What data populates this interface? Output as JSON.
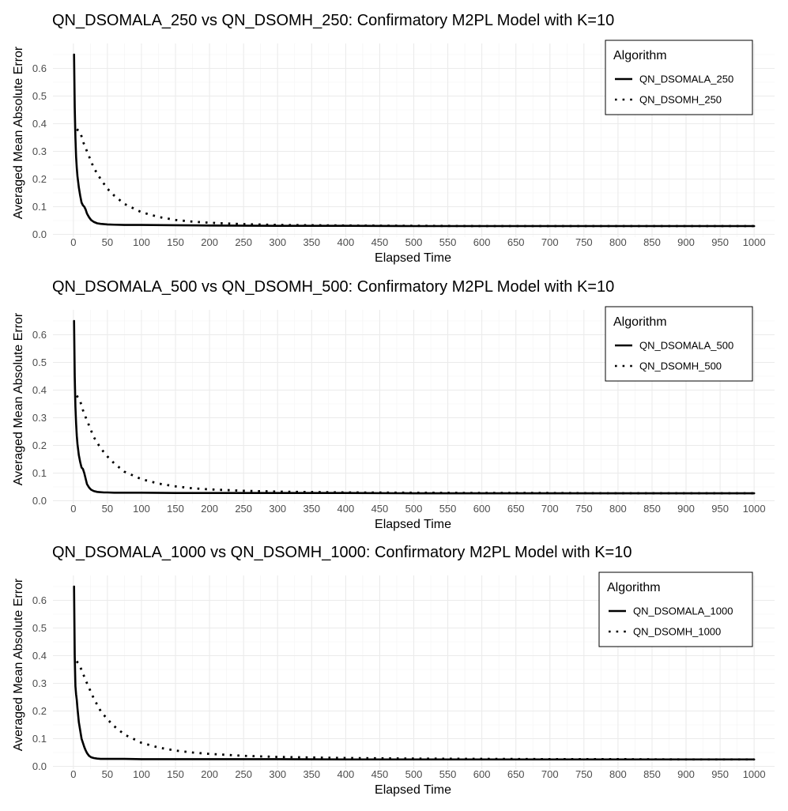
{
  "figure": {
    "description": "Three stacked panels comparing QN_DSOMALA and QN_DSOMH convergence"
  },
  "chart_data": [
    {
      "type": "line",
      "title": "QN_DSOMALA_250 vs QN_DSOMH_250: Confirmatory M2PL Model with K=10",
      "xlabel": "Elapsed Time",
      "ylabel": "Averaged Mean Absolute Error",
      "xlim": [
        -30,
        1030
      ],
      "ylim": [
        -0.01,
        0.69
      ],
      "xticks": [
        0,
        50,
        100,
        150,
        200,
        250,
        300,
        350,
        400,
        450,
        500,
        550,
        600,
        650,
        700,
        750,
        800,
        850,
        900,
        950,
        1000
      ],
      "yticks": [
        0.0,
        0.1,
        0.2,
        0.3,
        0.4,
        0.5,
        0.6
      ],
      "ytick_labels": [
        "0.0",
        "0.1",
        "0.2",
        "0.3",
        "0.4",
        "0.5",
        "0.6"
      ],
      "grid": true,
      "legend": {
        "title": "Algorithm",
        "position": "top-right"
      },
      "series": [
        {
          "name": "QN_DSOMALA_250",
          "style": "solid",
          "x": [
            1,
            2,
            3,
            4,
            5,
            6,
            8,
            10,
            12,
            14,
            16,
            18,
            20,
            23,
            26,
            30,
            35,
            40,
            45,
            50,
            60,
            75,
            100,
            150,
            200,
            300,
            400,
            500,
            600,
            700,
            800,
            900,
            1000
          ],
          "y": [
            0.65,
            0.46,
            0.35,
            0.28,
            0.24,
            0.21,
            0.17,
            0.14,
            0.115,
            0.105,
            0.1,
            0.09,
            0.075,
            0.062,
            0.052,
            0.045,
            0.04,
            0.038,
            0.037,
            0.036,
            0.035,
            0.034,
            0.034,
            0.033,
            0.032,
            0.031,
            0.031,
            0.03,
            0.03,
            0.03,
            0.03,
            0.03,
            0.03
          ]
        },
        {
          "name": "QN_DSOMH_250",
          "style": "dotted",
          "x": [
            5,
            10,
            15,
            20,
            30,
            40,
            50,
            60,
            75,
            100,
            125,
            150,
            175,
            200,
            250,
            300,
            400,
            500,
            600,
            700,
            800,
            900,
            1000
          ],
          "y": [
            0.38,
            0.37,
            0.33,
            0.3,
            0.24,
            0.2,
            0.165,
            0.14,
            0.11,
            0.08,
            0.063,
            0.052,
            0.046,
            0.042,
            0.037,
            0.034,
            0.032,
            0.031,
            0.03,
            0.03,
            0.03,
            0.03,
            0.03
          ]
        }
      ]
    },
    {
      "type": "line",
      "title": "QN_DSOMALA_500 vs QN_DSOMH_500: Confirmatory M2PL Model with K=10",
      "xlabel": "Elapsed Time",
      "ylabel": "Averaged Mean Absolute Error",
      "xlim": [
        -30,
        1030
      ],
      "ylim": [
        -0.01,
        0.69
      ],
      "xticks": [
        0,
        50,
        100,
        150,
        200,
        250,
        300,
        350,
        400,
        450,
        500,
        550,
        600,
        650,
        700,
        750,
        800,
        850,
        900,
        950,
        1000
      ],
      "yticks": [
        0.0,
        0.1,
        0.2,
        0.3,
        0.4,
        0.5,
        0.6
      ],
      "ytick_labels": [
        "0.0",
        "0.1",
        "0.2",
        "0.3",
        "0.4",
        "0.5",
        "0.6"
      ],
      "grid": true,
      "legend": {
        "title": "Algorithm",
        "position": "top-right"
      },
      "series": [
        {
          "name": "QN_DSOMALA_500",
          "style": "solid",
          "x": [
            1,
            2,
            3,
            4,
            5,
            6,
            8,
            10,
            12,
            14,
            16,
            18,
            20,
            23,
            26,
            30,
            35,
            40,
            45,
            50,
            60,
            75,
            100,
            150,
            200,
            300,
            400,
            500,
            600,
            700,
            800,
            900,
            1000
          ],
          "y": [
            0.65,
            0.45,
            0.34,
            0.28,
            0.235,
            0.205,
            0.165,
            0.14,
            0.12,
            0.115,
            0.1,
            0.08,
            0.06,
            0.048,
            0.04,
            0.035,
            0.032,
            0.031,
            0.03,
            0.03,
            0.029,
            0.029,
            0.029,
            0.028,
            0.028,
            0.028,
            0.028,
            0.027,
            0.027,
            0.027,
            0.027,
            0.027,
            0.027
          ]
        },
        {
          "name": "QN_DSOMH_500",
          "style": "dotted",
          "x": [
            5,
            10,
            15,
            20,
            30,
            40,
            50,
            60,
            75,
            100,
            125,
            150,
            175,
            200,
            250,
            300,
            400,
            500,
            600,
            700,
            800,
            900,
            1000
          ],
          "y": [
            0.38,
            0.36,
            0.32,
            0.29,
            0.23,
            0.19,
            0.16,
            0.135,
            0.105,
            0.078,
            0.062,
            0.052,
            0.045,
            0.041,
            0.036,
            0.033,
            0.03,
            0.029,
            0.028,
            0.028,
            0.027,
            0.027,
            0.027
          ]
        }
      ]
    },
    {
      "type": "line",
      "title": "QN_DSOMALA_1000 vs QN_DSOMH_1000: Confirmatory M2PL Model with K=10",
      "xlabel": "Elapsed Time",
      "ylabel": "Averaged Mean Absolute Error",
      "xlim": [
        -30,
        1030
      ],
      "ylim": [
        -0.01,
        0.69
      ],
      "xticks": [
        0,
        50,
        100,
        150,
        200,
        250,
        300,
        350,
        400,
        450,
        500,
        550,
        600,
        650,
        700,
        750,
        800,
        850,
        900,
        950,
        1000
      ],
      "yticks": [
        0.0,
        0.1,
        0.2,
        0.3,
        0.4,
        0.5,
        0.6
      ],
      "ytick_labels": [
        "0.0",
        "0.1",
        "0.2",
        "0.3",
        "0.4",
        "0.5",
        "0.6"
      ],
      "grid": true,
      "legend": {
        "title": "Algorithm",
        "position": "top-right"
      },
      "series": [
        {
          "name": "QN_DSOMALA_1000",
          "style": "solid",
          "x": [
            1,
            2,
            3,
            4,
            5,
            6,
            8,
            10,
            12,
            14,
            16,
            18,
            20,
            23,
            26,
            30,
            35,
            40,
            45,
            50,
            60,
            75,
            100,
            150,
            200,
            300,
            400,
            500,
            600,
            700,
            800,
            900,
            1000
          ],
          "y": [
            0.65,
            0.4,
            0.29,
            0.26,
            0.24,
            0.21,
            0.16,
            0.13,
            0.1,
            0.085,
            0.07,
            0.058,
            0.048,
            0.038,
            0.033,
            0.03,
            0.028,
            0.027,
            0.027,
            0.027,
            0.027,
            0.027,
            0.026,
            0.026,
            0.026,
            0.026,
            0.025,
            0.025,
            0.025,
            0.025,
            0.025,
            0.025,
            0.025
          ]
        },
        {
          "name": "QN_DSOMH_1000",
          "style": "dotted",
          "x": [
            5,
            10,
            15,
            20,
            30,
            40,
            50,
            60,
            75,
            100,
            125,
            150,
            175,
            200,
            250,
            300,
            400,
            500,
            600,
            700,
            800,
            900,
            1000
          ],
          "y": [
            0.38,
            0.36,
            0.33,
            0.3,
            0.245,
            0.2,
            0.17,
            0.145,
            0.115,
            0.085,
            0.068,
            0.057,
            0.05,
            0.045,
            0.038,
            0.034,
            0.03,
            0.028,
            0.027,
            0.026,
            0.026,
            0.025,
            0.025
          ]
        }
      ]
    }
  ]
}
